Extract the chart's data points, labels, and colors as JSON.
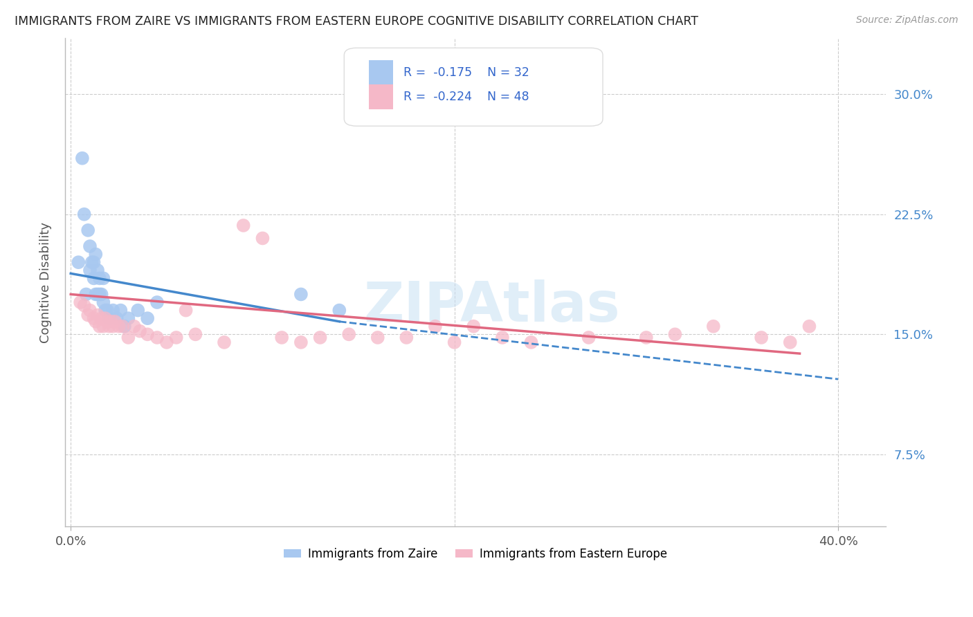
{
  "title": "IMMIGRANTS FROM ZAIRE VS IMMIGRANTS FROM EASTERN EUROPE COGNITIVE DISABILITY CORRELATION CHART",
  "source": "Source: ZipAtlas.com",
  "ylabel": "Cognitive Disability",
  "color_zaire": "#a8c8f0",
  "color_eastern": "#f5b8c8",
  "line_color_zaire": "#4488cc",
  "line_color_eastern": "#e06880",
  "legend_R_zaire": "R =  -0.175",
  "legend_N_zaire": "N = 32",
  "legend_R_eastern": "R =  -0.224",
  "legend_N_eastern": "N = 48",
  "ytick_labels": [
    "7.5%",
    "15.0%",
    "22.5%",
    "30.0%"
  ],
  "ytick_values": [
    0.075,
    0.15,
    0.225,
    0.3
  ],
  "xlim": [
    -0.003,
    0.425
  ],
  "ylim": [
    0.03,
    0.335
  ],
  "zaire_x": [
    0.004,
    0.006,
    0.007,
    0.008,
    0.009,
    0.01,
    0.01,
    0.011,
    0.012,
    0.012,
    0.013,
    0.013,
    0.014,
    0.014,
    0.015,
    0.015,
    0.016,
    0.017,
    0.017,
    0.018,
    0.019,
    0.02,
    0.022,
    0.024,
    0.026,
    0.028,
    0.03,
    0.035,
    0.04,
    0.045,
    0.12,
    0.14
  ],
  "zaire_y": [
    0.195,
    0.26,
    0.225,
    0.175,
    0.215,
    0.19,
    0.205,
    0.195,
    0.185,
    0.195,
    0.2,
    0.175,
    0.19,
    0.175,
    0.185,
    0.175,
    0.175,
    0.185,
    0.17,
    0.165,
    0.165,
    0.16,
    0.165,
    0.16,
    0.165,
    0.155,
    0.16,
    0.165,
    0.16,
    0.17,
    0.175,
    0.165
  ],
  "eastern_x": [
    0.005,
    0.007,
    0.009,
    0.01,
    0.012,
    0.013,
    0.014,
    0.015,
    0.016,
    0.017,
    0.018,
    0.019,
    0.02,
    0.021,
    0.022,
    0.023,
    0.025,
    0.027,
    0.03,
    0.033,
    0.036,
    0.04,
    0.045,
    0.05,
    0.055,
    0.06,
    0.065,
    0.08,
    0.09,
    0.1,
    0.11,
    0.12,
    0.13,
    0.145,
    0.16,
    0.175,
    0.19,
    0.2,
    0.21,
    0.225,
    0.24,
    0.27,
    0.3,
    0.315,
    0.335,
    0.36,
    0.375,
    0.385
  ],
  "eastern_y": [
    0.17,
    0.168,
    0.162,
    0.165,
    0.16,
    0.158,
    0.162,
    0.155,
    0.16,
    0.155,
    0.16,
    0.158,
    0.155,
    0.158,
    0.155,
    0.158,
    0.155,
    0.155,
    0.148,
    0.155,
    0.152,
    0.15,
    0.148,
    0.145,
    0.148,
    0.165,
    0.15,
    0.145,
    0.218,
    0.21,
    0.148,
    0.145,
    0.148,
    0.15,
    0.148,
    0.148,
    0.155,
    0.145,
    0.155,
    0.148,
    0.145,
    0.148,
    0.148,
    0.15,
    0.155,
    0.148,
    0.145,
    0.155
  ],
  "line_zaire_x0": 0.0,
  "line_zaire_x1": 0.14,
  "line_zaire_y0": 0.188,
  "line_zaire_y1": 0.158,
  "line_zaire_xdash0": 0.14,
  "line_zaire_xdash1": 0.4,
  "line_zaire_ydash0": 0.158,
  "line_zaire_ydash1": 0.122,
  "line_eastern_x0": 0.0,
  "line_eastern_x1": 0.38,
  "line_eastern_y0": 0.175,
  "line_eastern_y1": 0.138
}
